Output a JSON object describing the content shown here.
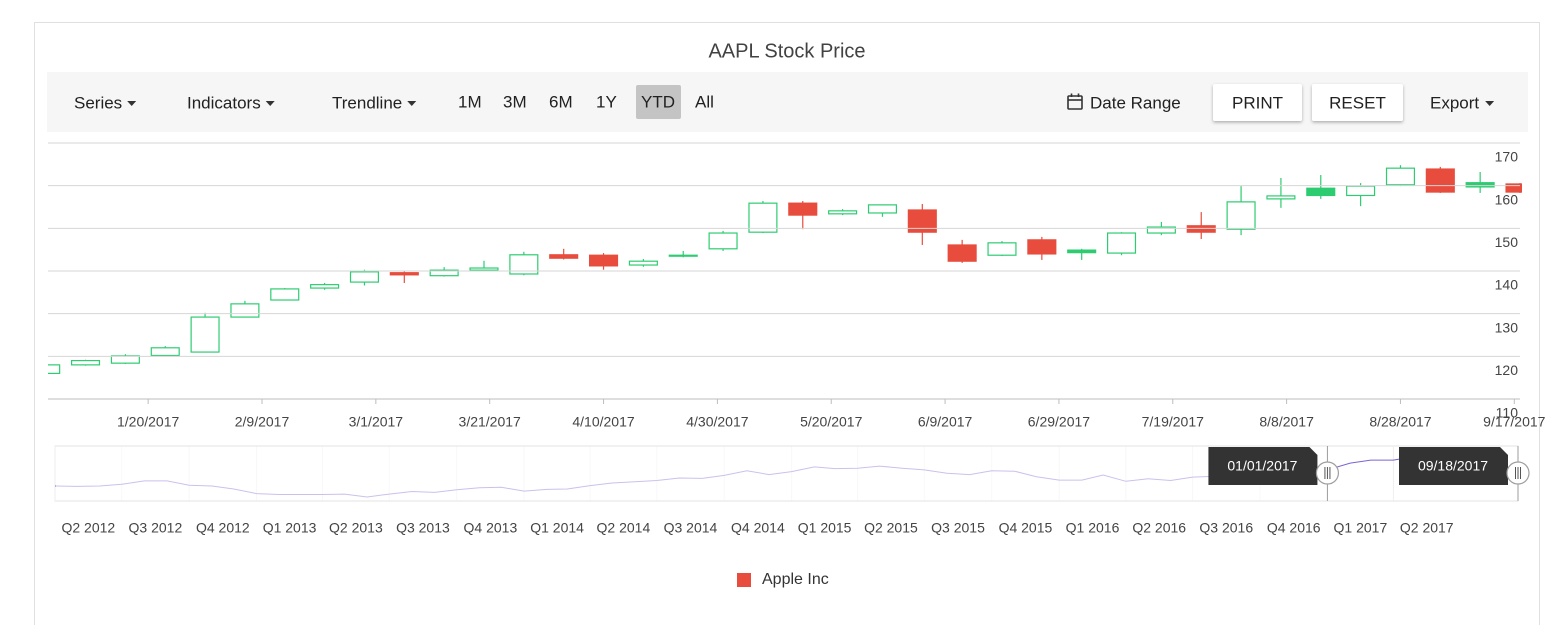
{
  "toolbar": {
    "menus": [
      "Series",
      "Indicators",
      "Trendline"
    ],
    "periods": [
      "1M",
      "3M",
      "6M",
      "1Y",
      "YTD",
      "All"
    ],
    "selected_period": 4,
    "date_range": "Date Range",
    "buttons": [
      "PRINT",
      "RESET"
    ],
    "export": "Export"
  },
  "chart_data": {
    "type": "candlestick",
    "title": "AAPL Stock Price",
    "x": [
      "2017-01-02",
      "2017-01-09",
      "2017-01-16",
      "2017-01-23",
      "2017-01-30",
      "2017-02-06",
      "2017-02-13",
      "2017-02-20",
      "2017-02-27",
      "2017-03-06",
      "2017-03-13",
      "2017-03-20",
      "2017-03-27",
      "2017-04-03",
      "2017-04-10",
      "2017-04-17",
      "2017-04-24",
      "2017-05-01",
      "2017-05-08",
      "2017-05-15",
      "2017-05-22",
      "2017-05-29",
      "2017-06-05",
      "2017-06-12",
      "2017-06-19",
      "2017-06-26",
      "2017-07-03",
      "2017-07-10",
      "2017-07-17",
      "2017-07-24",
      "2017-07-31",
      "2017-08-07",
      "2017-08-14",
      "2017-08-21",
      "2017-08-28",
      "2017-09-04",
      "2017-09-11",
      "2017-09-18"
    ],
    "series": [
      {
        "name": "Apple Inc",
        "color": "#e74c3c",
        "bull_color": "#2ecc71",
        "open": [
          116.0,
          118.0,
          118.4,
          120.2,
          121.0,
          129.2,
          133.2,
          136.0,
          137.4,
          139.6,
          138.9,
          140.2,
          139.3,
          143.8,
          143.7,
          141.4,
          143.5,
          145.2,
          149.1,
          155.9,
          153.4,
          153.6,
          154.3,
          146.1,
          143.7,
          147.3,
          144.9,
          144.2,
          148.9,
          150.6,
          149.8,
          156.9,
          159.4,
          157.7,
          160.2,
          163.9,
          160.7,
          160.4
        ],
        "high": [
          118.2,
          119.2,
          120.5,
          122.4,
          130.2,
          133.0,
          136.0,
          137.2,
          140.3,
          140.0,
          140.9,
          142.4,
          144.5,
          145.2,
          144.2,
          142.8,
          144.7,
          149.4,
          156.4,
          156.4,
          154.5,
          155.6,
          155.7,
          147.3,
          147.0,
          148.0,
          145.2,
          149.1,
          151.5,
          153.8,
          159.9,
          161.8,
          162.5,
          160.6,
          164.8,
          164.4,
          163.2,
          160.6
        ],
        "low": [
          115.5,
          117.8,
          118.2,
          120.0,
          120.9,
          129.1,
          133.1,
          135.6,
          136.6,
          137.2,
          138.7,
          140.0,
          139.0,
          142.7,
          140.3,
          141.0,
          143.2,
          144.7,
          148.9,
          149.8,
          153.1,
          152.7,
          146.1,
          141.9,
          143.5,
          142.6,
          142.6,
          143.7,
          148.4,
          147.5,
          148.4,
          154.8,
          156.9,
          155.2,
          159.9,
          158.3,
          158.3,
          158.3
        ],
        "close": [
          118.0,
          119.0,
          120.1,
          122.0,
          129.2,
          132.3,
          135.8,
          136.8,
          139.8,
          139.1,
          140.2,
          140.7,
          143.8,
          143.0,
          141.2,
          142.3,
          143.7,
          148.9,
          155.9,
          153.1,
          154.1,
          155.5,
          149.1,
          142.3,
          146.6,
          144.0,
          144.3,
          148.9,
          150.3,
          149.1,
          156.2,
          157.6,
          157.7,
          159.9,
          164.1,
          158.5,
          159.7,
          158.5
        ]
      }
    ],
    "xlim": [
      "2017-01-01",
      "2017-09-18"
    ],
    "xticks": [
      {
        "value": "2017-01-20",
        "label": "1/20/2017"
      },
      {
        "value": "2017-02-09",
        "label": "2/9/2017"
      },
      {
        "value": "2017-03-01",
        "label": "3/1/2017"
      },
      {
        "value": "2017-03-21",
        "label": "3/21/2017"
      },
      {
        "value": "2017-04-10",
        "label": "4/10/2017"
      },
      {
        "value": "2017-04-30",
        "label": "4/30/2017"
      },
      {
        "value": "2017-05-20",
        "label": "5/20/2017"
      },
      {
        "value": "2017-06-09",
        "label": "6/9/2017"
      },
      {
        "value": "2017-06-29",
        "label": "6/29/2017"
      },
      {
        "value": "2017-07-19",
        "label": "7/19/2017"
      },
      {
        "value": "2017-08-08",
        "label": "8/8/2017"
      },
      {
        "value": "2017-08-28",
        "label": "8/28/2017"
      },
      {
        "value": "2017-09-17",
        "label": "9/17/2017"
      }
    ],
    "ylim": [
      110,
      170
    ],
    "yticks": [
      110,
      120,
      130,
      140,
      150,
      160,
      170
    ],
    "grid": true,
    "legend": "bottom",
    "navigator": {
      "type": "line",
      "color": "#7e63d1",
      "x": [
        "2012-04",
        "2012-05",
        "2012-06",
        "2012-07",
        "2012-08",
        "2012-09",
        "2012-10",
        "2012-11",
        "2012-12",
        "2013-01",
        "2013-02",
        "2013-03",
        "2013-04",
        "2013-05",
        "2013-06",
        "2013-07",
        "2013-08",
        "2013-09",
        "2013-10",
        "2013-11",
        "2013-12",
        "2014-01",
        "2014-02",
        "2014-03",
        "2014-04",
        "2014-05",
        "2014-06",
        "2014-07",
        "2014-08",
        "2014-09",
        "2014-10",
        "2014-11",
        "2014-12",
        "2015-01",
        "2015-02",
        "2015-03",
        "2015-04",
        "2015-05",
        "2015-06",
        "2015-07",
        "2015-08",
        "2015-09",
        "2015-10",
        "2015-11",
        "2015-12",
        "2016-01",
        "2016-02",
        "2016-03",
        "2016-04",
        "2016-05",
        "2016-06",
        "2016-07",
        "2016-08",
        "2016-09",
        "2016-10",
        "2016-11",
        "2016-12",
        "2017-01",
        "2017-02",
        "2017-03",
        "2017-04",
        "2017-05",
        "2017-06",
        "2017-07",
        "2017-08",
        "2017-09"
      ],
      "values": [
        83,
        82,
        83,
        87,
        95,
        95,
        85,
        83,
        76,
        65,
        63,
        63,
        63,
        64,
        57,
        64,
        70,
        68,
        74,
        79,
        80,
        71,
        75,
        76,
        84,
        90,
        93,
        96,
        102,
        101,
        108,
        119,
        110,
        117,
        128,
        124,
        125,
        130,
        125,
        121,
        113,
        110,
        119,
        118,
        105,
        97,
        97,
        109,
        94,
        100,
        96,
        104,
        106,
        113,
        113,
        111,
        116,
        121,
        137,
        144,
        144,
        153,
        144,
        149,
        164,
        159
      ],
      "xlim": [
        "2012-04-01",
        "2017-09-18"
      ],
      "ylim": [
        50,
        175
      ],
      "xticks": [
        {
          "value": "2012-04",
          "label": "Q2 2012"
        },
        {
          "value": "2012-07",
          "label": "Q3 2012"
        },
        {
          "value": "2012-10",
          "label": "Q4 2012"
        },
        {
          "value": "2013-01",
          "label": "Q1 2013"
        },
        {
          "value": "2013-04",
          "label": "Q2 2013"
        },
        {
          "value": "2013-07",
          "label": "Q3 2013"
        },
        {
          "value": "2013-10",
          "label": "Q4 2013"
        },
        {
          "value": "2014-01",
          "label": "Q1 2014"
        },
        {
          "value": "2014-04",
          "label": "Q2 2014"
        },
        {
          "value": "2014-07",
          "label": "Q3 2014"
        },
        {
          "value": "2014-10",
          "label": "Q4 2014"
        },
        {
          "value": "2015-01",
          "label": "Q1 2015"
        },
        {
          "value": "2015-04",
          "label": "Q2 2015"
        },
        {
          "value": "2015-07",
          "label": "Q3 2015"
        },
        {
          "value": "2015-10",
          "label": "Q4 2015"
        },
        {
          "value": "2016-01",
          "label": "Q1 2016"
        },
        {
          "value": "2016-04",
          "label": "Q2 2016"
        },
        {
          "value": "2016-07",
          "label": "Q3 2016"
        },
        {
          "value": "2016-10",
          "label": "Q4 2016"
        },
        {
          "value": "2017-01",
          "label": "Q1 2017"
        },
        {
          "value": "2017-04",
          "label": "Q2 2017"
        }
      ],
      "selection": [
        {
          "value": "2017-01-01",
          "label": "01/01/2017"
        },
        {
          "value": "2017-09-18",
          "label": "09/18/2017"
        }
      ]
    }
  }
}
